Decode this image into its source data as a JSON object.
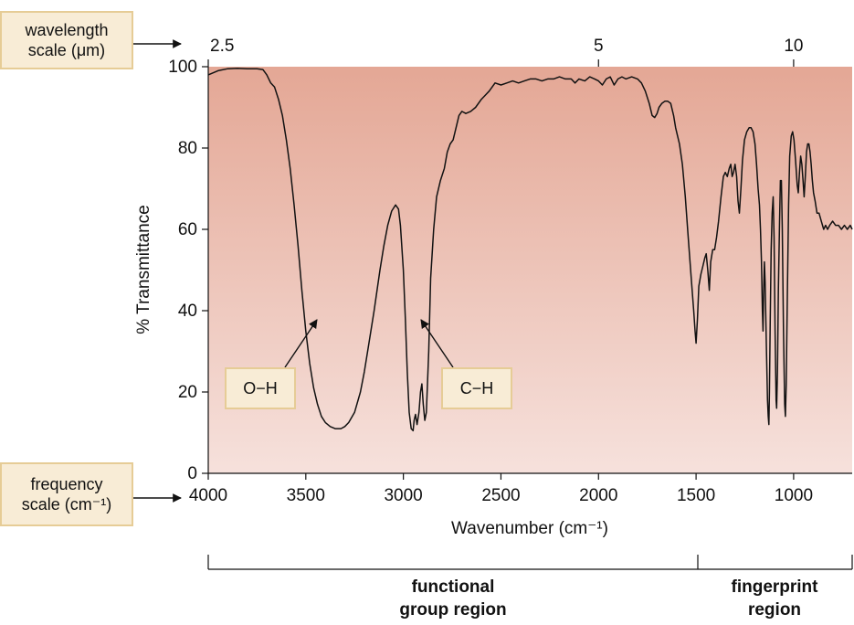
{
  "colors": {
    "plot_top": "#e4a795",
    "plot_bottom": "#f6e1dc",
    "spectrum_line": "#111111",
    "callout_fill": "#f8ecd6",
    "callout_border": "#e6cc96"
  },
  "callouts": {
    "wavelength_scale": [
      "wavelength",
      "scale (μm)"
    ],
    "frequency_scale": [
      "frequency",
      "scale (cm⁻¹)"
    ]
  },
  "peak_labels": {
    "oh": "O−H",
    "ch": "C−H"
  },
  "regions": {
    "functional_group": [
      "functional",
      "group region"
    ],
    "fingerprint": [
      "fingerprint",
      "region"
    ]
  },
  "chart_data": {
    "type": "line",
    "title": "",
    "xlabel": "Wavenumber (cm⁻¹)",
    "ylabel": "% Transmittance",
    "xlim": [
      4000,
      700
    ],
    "ylim": [
      0,
      100
    ],
    "x_reversed": true,
    "grid": false,
    "x_ticks": [
      4000,
      3500,
      3000,
      2500,
      2000,
      1500,
      1000
    ],
    "x_tick_labels": [
      "4000",
      "3500",
      "3000",
      "2500",
      "2000",
      "1500",
      "1000"
    ],
    "y_ticks": [
      0,
      20,
      40,
      60,
      80,
      100
    ],
    "y_tick_labels": [
      "0",
      "20",
      "40",
      "60",
      "80",
      "100"
    ],
    "top_axis": {
      "label": "wavelength scale (μm)",
      "ticks": [
        2.5,
        5,
        10
      ],
      "tick_labels": [
        "2.5",
        "5",
        "10"
      ]
    },
    "annotations": [
      {
        "text": "O−H",
        "points_to_wavenumber": 3350,
        "points_to_transmittance": 38
      },
      {
        "text": "C−H",
        "points_to_wavenumber": 2930,
        "points_to_transmittance": 38
      }
    ],
    "series": [
      {
        "values": [
          [
            4000,
            98
          ],
          [
            3950,
            99
          ],
          [
            3900,
            99.5
          ],
          [
            3850,
            99.6
          ],
          [
            3800,
            99.5
          ],
          [
            3750,
            99.5
          ],
          [
            3720,
            99.3
          ],
          [
            3700,
            98
          ],
          [
            3680,
            96
          ],
          [
            3660,
            95
          ],
          [
            3640,
            92
          ],
          [
            3620,
            88
          ],
          [
            3600,
            82
          ],
          [
            3580,
            75
          ],
          [
            3560,
            66
          ],
          [
            3540,
            56
          ],
          [
            3520,
            45
          ],
          [
            3500,
            35
          ],
          [
            3480,
            27
          ],
          [
            3460,
            21
          ],
          [
            3440,
            17
          ],
          [
            3420,
            14
          ],
          [
            3400,
            12.5
          ],
          [
            3375,
            11.5
          ],
          [
            3350,
            11
          ],
          [
            3320,
            11
          ],
          [
            3300,
            11.5
          ],
          [
            3280,
            12.5
          ],
          [
            3250,
            15
          ],
          [
            3220,
            20
          ],
          [
            3200,
            25
          ],
          [
            3180,
            31
          ],
          [
            3150,
            40
          ],
          [
            3120,
            50
          ],
          [
            3100,
            56
          ],
          [
            3080,
            61
          ],
          [
            3060,
            64.5
          ],
          [
            3040,
            66
          ],
          [
            3025,
            65
          ],
          [
            3015,
            61
          ],
          [
            3000,
            50
          ],
          [
            2990,
            38
          ],
          [
            2980,
            25
          ],
          [
            2970,
            15
          ],
          [
            2960,
            11
          ],
          [
            2950,
            10.5
          ],
          [
            2945,
            13
          ],
          [
            2938,
            14.5
          ],
          [
            2930,
            12
          ],
          [
            2920,
            15
          ],
          [
            2912,
            20
          ],
          [
            2905,
            22
          ],
          [
            2898,
            17
          ],
          [
            2890,
            13
          ],
          [
            2882,
            15
          ],
          [
            2870,
            30
          ],
          [
            2860,
            48
          ],
          [
            2845,
            60
          ],
          [
            2830,
            68
          ],
          [
            2810,
            72
          ],
          [
            2790,
            75
          ],
          [
            2775,
            79
          ],
          [
            2760,
            81
          ],
          [
            2745,
            82
          ],
          [
            2730,
            85
          ],
          [
            2715,
            88
          ],
          [
            2700,
            89
          ],
          [
            2680,
            88.5
          ],
          [
            2655,
            89
          ],
          [
            2630,
            90
          ],
          [
            2600,
            92
          ],
          [
            2580,
            93
          ],
          [
            2560,
            94
          ],
          [
            2530,
            96
          ],
          [
            2500,
            95.5
          ],
          [
            2470,
            96
          ],
          [
            2440,
            96.5
          ],
          [
            2410,
            96
          ],
          [
            2380,
            96.5
          ],
          [
            2350,
            97
          ],
          [
            2320,
            97
          ],
          [
            2290,
            96.5
          ],
          [
            2260,
            97
          ],
          [
            2230,
            97
          ],
          [
            2200,
            97.5
          ],
          [
            2170,
            97
          ],
          [
            2140,
            97
          ],
          [
            2120,
            96
          ],
          [
            2100,
            97
          ],
          [
            2070,
            96.5
          ],
          [
            2045,
            97.5
          ],
          [
            2020,
            97
          ],
          [
            2000,
            96.5
          ],
          [
            1980,
            95.5
          ],
          [
            1960,
            97
          ],
          [
            1940,
            97.5
          ],
          [
            1920,
            95.5
          ],
          [
            1900,
            97
          ],
          [
            1880,
            97.5
          ],
          [
            1860,
            97
          ],
          [
            1830,
            97.5
          ],
          [
            1800,
            97
          ],
          [
            1780,
            96
          ],
          [
            1760,
            94
          ],
          [
            1740,
            91
          ],
          [
            1725,
            88
          ],
          [
            1712,
            87.5
          ],
          [
            1700,
            88.5
          ],
          [
            1690,
            90
          ],
          [
            1675,
            91
          ],
          [
            1660,
            91.5
          ],
          [
            1645,
            91.5
          ],
          [
            1630,
            91
          ],
          [
            1615,
            88
          ],
          [
            1605,
            85
          ],
          [
            1595,
            83
          ],
          [
            1585,
            81
          ],
          [
            1570,
            76
          ],
          [
            1555,
            68
          ],
          [
            1540,
            58
          ],
          [
            1525,
            48
          ],
          [
            1512,
            40
          ],
          [
            1505,
            35
          ],
          [
            1500,
            32
          ],
          [
            1493,
            38
          ],
          [
            1486,
            46
          ],
          [
            1475,
            49
          ],
          [
            1465,
            51
          ],
          [
            1455,
            53
          ],
          [
            1448,
            54
          ],
          [
            1440,
            50
          ],
          [
            1432,
            45
          ],
          [
            1425,
            52
          ],
          [
            1415,
            55
          ],
          [
            1405,
            55
          ],
          [
            1395,
            58
          ],
          [
            1385,
            62
          ],
          [
            1372,
            68
          ],
          [
            1360,
            73
          ],
          [
            1350,
            74
          ],
          [
            1340,
            73
          ],
          [
            1330,
            75
          ],
          [
            1322,
            76
          ],
          [
            1315,
            73
          ],
          [
            1308,
            74
          ],
          [
            1300,
            76
          ],
          [
            1292,
            73
          ],
          [
            1285,
            67
          ],
          [
            1278,
            64
          ],
          [
            1270,
            70
          ],
          [
            1262,
            77
          ],
          [
            1252,
            82
          ],
          [
            1240,
            84
          ],
          [
            1228,
            85
          ],
          [
            1218,
            85
          ],
          [
            1208,
            84
          ],
          [
            1198,
            81
          ],
          [
            1190,
            76
          ],
          [
            1182,
            70
          ],
          [
            1175,
            66
          ],
          [
            1170,
            60
          ],
          [
            1165,
            52
          ],
          [
            1160,
            40
          ],
          [
            1157,
            35
          ],
          [
            1154,
            44
          ],
          [
            1150,
            52
          ],
          [
            1146,
            47
          ],
          [
            1140,
            32
          ],
          [
            1134,
            18
          ],
          [
            1130,
            14
          ],
          [
            1127,
            12
          ],
          [
            1124,
            20
          ],
          [
            1120,
            38
          ],
          [
            1115,
            55
          ],
          [
            1110,
            64
          ],
          [
            1105,
            68
          ],
          [
            1100,
            58
          ],
          [
            1095,
            35
          ],
          [
            1090,
            18
          ],
          [
            1087,
            16
          ],
          [
            1083,
            25
          ],
          [
            1078,
            45
          ],
          [
            1072,
            62
          ],
          [
            1068,
            72
          ],
          [
            1063,
            72
          ],
          [
            1058,
            60
          ],
          [
            1052,
            35
          ],
          [
            1046,
            17
          ],
          [
            1042,
            14
          ],
          [
            1038,
            22
          ],
          [
            1032,
            45
          ],
          [
            1026,
            66
          ],
          [
            1020,
            78
          ],
          [
            1012,
            83
          ],
          [
            1005,
            84
          ],
          [
            998,
            82
          ],
          [
            990,
            77
          ],
          [
            982,
            71
          ],
          [
            976,
            69
          ],
          [
            970,
            74
          ],
          [
            964,
            78
          ],
          [
            958,
            76
          ],
          [
            952,
            72
          ],
          [
            946,
            68
          ],
          [
            940,
            73
          ],
          [
            934,
            79
          ],
          [
            928,
            81
          ],
          [
            922,
            81
          ],
          [
            916,
            79
          ],
          [
            910,
            76
          ],
          [
            904,
            72
          ],
          [
            898,
            69
          ],
          [
            890,
            67
          ],
          [
            880,
            64
          ],
          [
            870,
            64
          ],
          [
            858,
            62
          ],
          [
            846,
            60
          ],
          [
            836,
            61
          ],
          [
            826,
            60
          ],
          [
            815,
            61
          ],
          [
            800,
            62
          ],
          [
            785,
            61
          ],
          [
            770,
            61
          ],
          [
            755,
            60
          ],
          [
            740,
            61
          ],
          [
            725,
            60
          ],
          [
            710,
            61
          ],
          [
            700,
            60
          ]
        ]
      }
    ]
  }
}
